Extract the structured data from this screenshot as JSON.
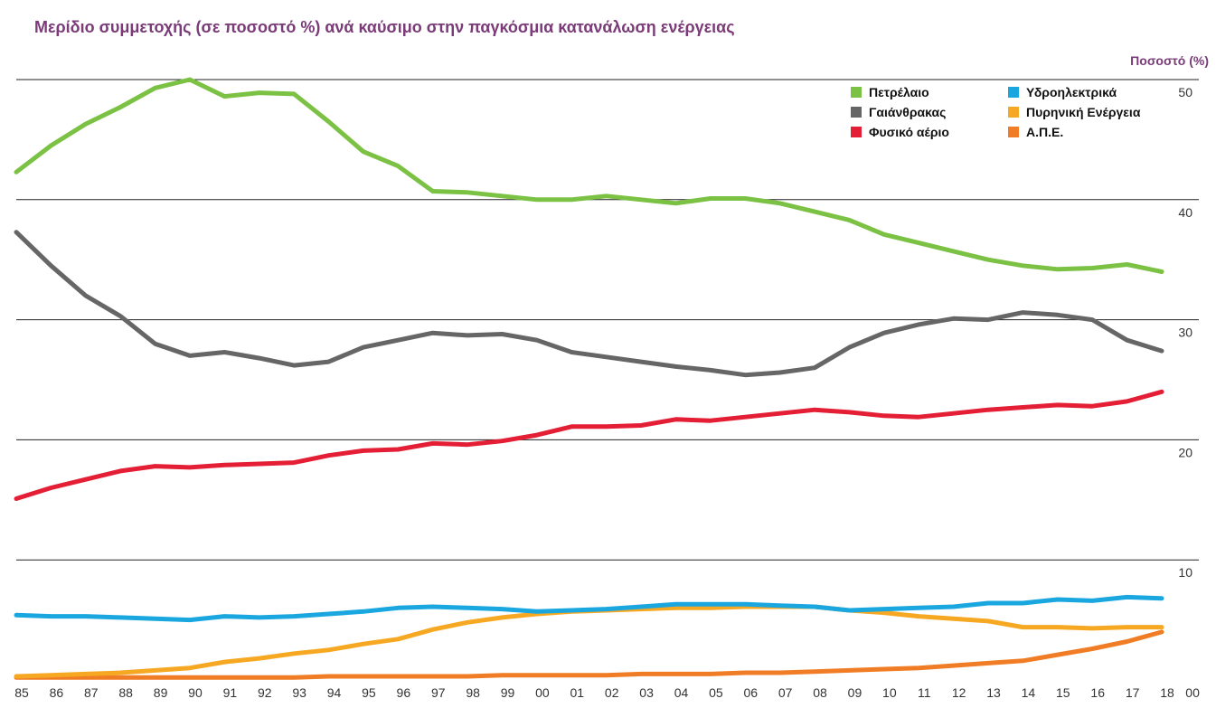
{
  "chart_data": {
    "type": "line",
    "title": "Μερίδιο συμμετοχής (σε ποσοστό %) ανά καύσιμο στην παγκόσμια κατανάλωση ενέργειας",
    "ylabel": "Ποσοστό (%)",
    "xlabel": "",
    "ylim": [
      0,
      50
    ],
    "y_ticks": [
      "0",
      "10",
      "20",
      "30",
      "40",
      "50"
    ],
    "grid": true,
    "legend_position": "top-right",
    "categories": [
      "85",
      "86",
      "87",
      "88",
      "89",
      "90",
      "91",
      "92",
      "93",
      "94",
      "95",
      "96",
      "97",
      "98",
      "99",
      "00",
      "01",
      "02",
      "03",
      "04",
      "05",
      "06",
      "07",
      "08",
      "09",
      "10",
      "11",
      "12",
      "13",
      "14",
      "15",
      "16",
      "17",
      "18"
    ],
    "series": [
      {
        "name": "Πετρέλαιο",
        "color": "#7bc143",
        "values": [
          42.3,
          44.5,
          46.3,
          47.7,
          49.3,
          50.0,
          48.6,
          48.9,
          48.8,
          46.5,
          44.0,
          42.8,
          40.7,
          40.6,
          40.3,
          40.0,
          40.0,
          40.3,
          40.0,
          39.7,
          40.1,
          40.1,
          39.7,
          39.0,
          38.3,
          37.1,
          36.4,
          35.7,
          35.0,
          34.5,
          34.2,
          34.3,
          34.6,
          34.0
        ]
      },
      {
        "name": "Γαιάνθρακας",
        "color": "#666666",
        "values": [
          37.3,
          34.5,
          32.0,
          30.3,
          28.0,
          27.0,
          27.3,
          26.8,
          26.2,
          26.5,
          27.7,
          28.3,
          28.9,
          28.7,
          28.8,
          28.3,
          27.3,
          26.9,
          26.5,
          26.1,
          25.8,
          25.4,
          25.6,
          26.0,
          27.7,
          28.9,
          29.6,
          30.1,
          30.0,
          30.6,
          30.4,
          30.0,
          28.3,
          27.4
        ]
      },
      {
        "name": "Φυσικό αέριο",
        "color": "#e31e35",
        "values": [
          15.1,
          16.0,
          16.7,
          17.4,
          17.8,
          17.7,
          17.9,
          18.0,
          18.1,
          18.7,
          19.1,
          19.2,
          19.7,
          19.6,
          19.9,
          20.4,
          21.1,
          21.1,
          21.2,
          21.7,
          21.6,
          21.9,
          22.2,
          22.5,
          22.3,
          22.0,
          21.9,
          22.2,
          22.5,
          22.7,
          22.9,
          22.8,
          23.2,
          24.0
        ]
      },
      {
        "name": "Υδροηλεκτρικά",
        "color": "#1aa7df",
        "values": [
          5.4,
          5.3,
          5.3,
          5.2,
          5.1,
          5.0,
          5.3,
          5.2,
          5.3,
          5.5,
          5.7,
          6.0,
          6.1,
          6.0,
          5.9,
          5.7,
          5.8,
          5.9,
          6.1,
          6.3,
          6.3,
          6.3,
          6.2,
          6.1,
          5.8,
          5.9,
          6.0,
          6.1,
          6.4,
          6.4,
          6.7,
          6.6,
          6.9,
          6.8
        ]
      },
      {
        "name": "Πυρηνική Ενέργεια",
        "color": "#f7a823",
        "values": [
          0.3,
          0.4,
          0.5,
          0.6,
          0.8,
          1.0,
          1.5,
          1.8,
          2.2,
          2.5,
          3.0,
          3.4,
          4.2,
          4.8,
          5.2,
          5.5,
          5.7,
          5.8,
          5.9,
          6.0,
          6.0,
          6.1,
          6.1,
          6.1,
          5.8,
          5.6,
          5.3,
          5.1,
          4.9,
          4.4,
          4.4,
          4.3,
          4.4,
          4.4
        ]
      },
      {
        "name": "Α.Π.Ε.",
        "color": "#f07d25",
        "values": [
          0.2,
          0.2,
          0.2,
          0.2,
          0.2,
          0.2,
          0.2,
          0.2,
          0.2,
          0.3,
          0.3,
          0.3,
          0.3,
          0.3,
          0.4,
          0.4,
          0.4,
          0.4,
          0.5,
          0.5,
          0.5,
          0.6,
          0.6,
          0.7,
          0.8,
          0.9,
          1.0,
          1.2,
          1.4,
          1.6,
          2.1,
          2.6,
          3.2,
          4.0
        ]
      }
    ]
  }
}
